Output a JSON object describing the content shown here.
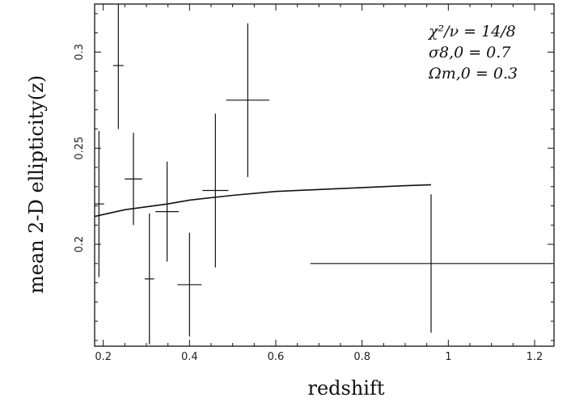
{
  "chart_data": {
    "type": "scatter",
    "xlabel": "redshift",
    "ylabel": "mean 2-D ellipticity(z)",
    "xlim": [
      0.18,
      1.245
    ],
    "ylim": [
      0.147,
      0.325
    ],
    "x_ticks": [
      0.2,
      0.4,
      0.6,
      0.8,
      1.0,
      1.2
    ],
    "x_tick_labels": [
      "0.2",
      "0.4",
      "0.6",
      "0.8",
      "1",
      "1.2"
    ],
    "y_ticks": [
      0.2,
      0.25,
      0.3
    ],
    "y_tick_labels": [
      "0.2",
      "0.25",
      "0.3"
    ],
    "grid": false,
    "annotations": [
      "χ²/ν = 14/8",
      "σ8,0 = 0.7",
      "Ωm,0 = 0.3"
    ],
    "points": [
      {
        "x": 0.19,
        "xerr": 0.012,
        "y": 0.221,
        "yerr": 0.038
      },
      {
        "x": 0.235,
        "xerr": 0.012,
        "y": 0.293,
        "yerr": 0.033
      },
      {
        "x": 0.27,
        "xerr": 0.02,
        "y": 0.234,
        "yerr": 0.024
      },
      {
        "x": 0.307,
        "xerr": 0.011,
        "y": 0.182,
        "yerr": 0.034
      },
      {
        "x": 0.348,
        "xerr": 0.027,
        "y": 0.217,
        "yerr": 0.026
      },
      {
        "x": 0.4,
        "xerr": 0.028,
        "y": 0.179,
        "yerr": 0.027
      },
      {
        "x": 0.46,
        "xerr": 0.03,
        "y": 0.228,
        "yerr": 0.04
      },
      {
        "x": 0.535,
        "xerr": 0.05,
        "y": 0.275,
        "yerr": 0.04
      },
      {
        "x": 0.96,
        "xerr": 0.28,
        "y": 0.19,
        "yerr": 0.036
      }
    ],
    "model_curve": {
      "x": [
        0.18,
        0.2,
        0.25,
        0.3,
        0.35,
        0.4,
        0.5,
        0.6,
        0.7,
        0.8,
        0.9,
        0.96
      ],
      "y": [
        0.2145,
        0.2155,
        0.218,
        0.2195,
        0.221,
        0.223,
        0.2255,
        0.2275,
        0.2285,
        0.2295,
        0.2305,
        0.231
      ]
    }
  }
}
